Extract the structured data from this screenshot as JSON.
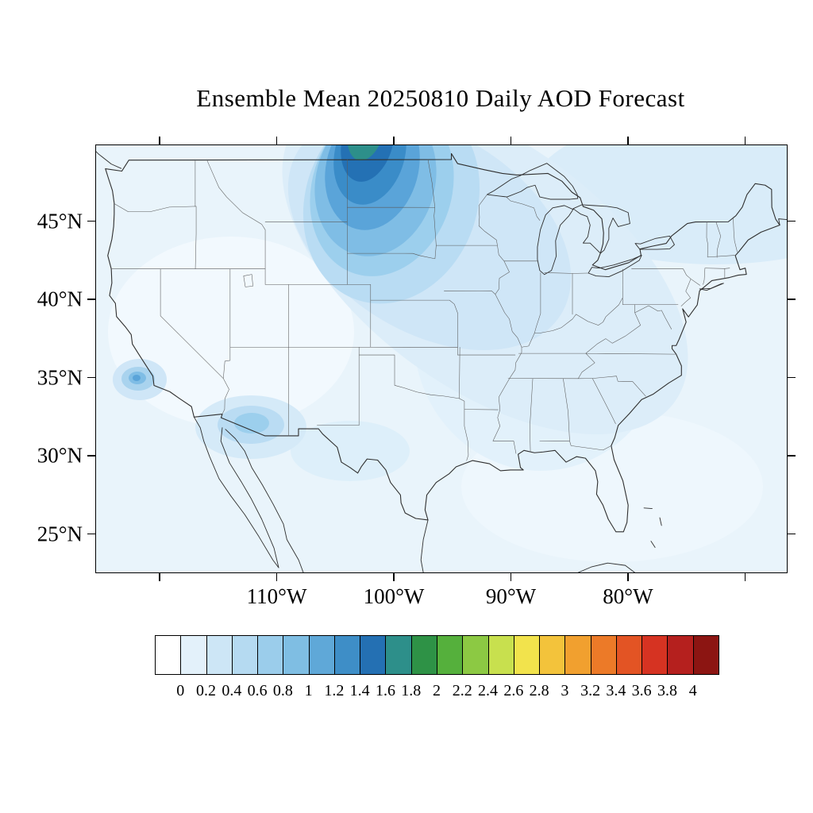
{
  "title": "Ensemble Mean 20250810 Daily AOD Forecast",
  "chart_data": {
    "type": "heatmap",
    "title": "Ensemble Mean 20250810 Daily AOD Forecast",
    "variable": "Daily AOD (aerosol optical depth), ensemble mean forecast",
    "region": "Continental United States with parts of Canada and Mexico",
    "projection": "cylindrical lat-lon",
    "x_ticks": [
      "110°W",
      "100°W",
      "90°W",
      "80°W"
    ],
    "y_ticks": [
      "45°N",
      "40°N",
      "35°N",
      "30°N",
      "25°N"
    ],
    "grid": false,
    "legend_position": "bottom colorbar",
    "colorbar": {
      "levels": [
        "0",
        "0.2",
        "0.4",
        "0.6",
        "0.8",
        "1",
        "1.2",
        "1.4",
        "1.6",
        "1.8",
        "2",
        "2.2",
        "2.4",
        "2.6",
        "2.8",
        "3",
        "3.2",
        "3.4",
        "3.6",
        "3.8",
        "4"
      ],
      "colors": [
        "#ffffff",
        "#e3f1fa",
        "#cde6f6",
        "#b5daf1",
        "#9bcdeb",
        "#7fbee3",
        "#5fa8d8",
        "#3e8ec7",
        "#2470b3",
        "#2d8f8a",
        "#2e9246",
        "#55b03c",
        "#8cc943",
        "#c8e04e",
        "#f2e34c",
        "#f3c33b",
        "#f1a02f",
        "#ec7a28",
        "#e35424",
        "#d63322",
        "#b5201e",
        "#8c1512"
      ]
    },
    "features": [
      {
        "name": "smoke-plume-north-dakota",
        "description": "Strong AOD maximum (up to ~1.6-2.0, teal/green core) centered near the North Dakota / Canada border, elongated NNW-SSE, darkest blues 0.8-1.4 over North Dakota",
        "center_lon": -100.5,
        "center_lat": 49.0,
        "peak_value": 1.8
      },
      {
        "name": "midwest-swath",
        "description": "Broad AOD 0.2-0.6 band sweeping southeast from the Northern Plains across Minnesota, the Great Lakes and the upper Midwest",
        "peak_value": 0.6
      },
      {
        "name": "northeast-band",
        "description": "Light AOD 0.2-0.4 over the Great Lakes, New England and southeastern Canada",
        "peak_value": 0.4
      },
      {
        "name": "california-spot",
        "description": "Local AOD maximum ~0.6-0.8 over central/coastal California near 35N",
        "center_lon": -120.5,
        "center_lat": 34.8,
        "peak_value": 0.8
      },
      {
        "name": "arizona-new-mexico-spot",
        "description": "Local AOD ~0.4-0.6 area over southern Arizona / New Mexico near 32N",
        "center_lon": -110.5,
        "center_lat": 32.3,
        "peak_value": 0.6
      },
      {
        "name": "background",
        "description": "Background AOD 0-0.2 (pale blue/white) over the rest of the domain and oceans",
        "peak_value": 0.2
      }
    ]
  }
}
